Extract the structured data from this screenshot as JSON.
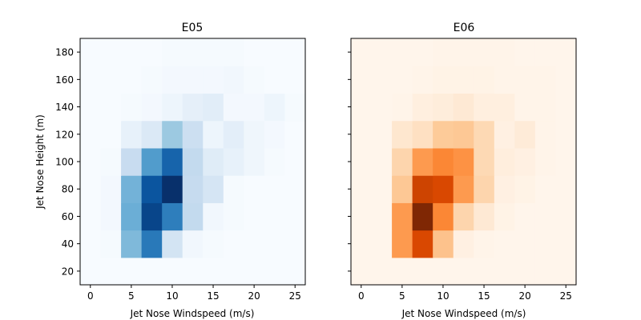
{
  "chart_data": [
    {
      "type": "heatmap",
      "title": "E05",
      "xlabel": "Jet Nose Windspeed (m/s)",
      "ylabel": "Jet Nose Height (m)",
      "xlim": [
        -1.25,
        26.25
      ],
      "ylim": [
        10,
        190
      ],
      "xticks": [
        0,
        5,
        10,
        15,
        20,
        25
      ],
      "yticks": [
        20,
        40,
        60,
        80,
        100,
        120,
        140,
        160,
        180
      ],
      "x_edges": [
        -1.25,
        1.25,
        3.75,
        6.25,
        8.75,
        11.25,
        13.75,
        16.25,
        18.75,
        21.25,
        23.75,
        26.25
      ],
      "y_edges": [
        10,
        30,
        50,
        70,
        90,
        110,
        130,
        150,
        170,
        190
      ],
      "colormap": "Blues",
      "grid": false,
      "values": [
        [
          0.0,
          0.0,
          0.0,
          0.0,
          0.0,
          0.0,
          0.0,
          0.0,
          0.0,
          0.0,
          0.0
        ],
        [
          0.0,
          0.01,
          0.45,
          0.72,
          0.18,
          0.03,
          0.01,
          0.0,
          0.0,
          0.0,
          0.0
        ],
        [
          0.0,
          0.02,
          0.5,
          0.92,
          0.7,
          0.26,
          0.03,
          0.01,
          0.0,
          0.0,
          0.0
        ],
        [
          0.0,
          0.02,
          0.48,
          0.86,
          1.0,
          0.25,
          0.17,
          0.01,
          0.0,
          0.0,
          0.0
        ],
        [
          0.0,
          0.01,
          0.24,
          0.58,
          0.8,
          0.26,
          0.12,
          0.08,
          0.04,
          0.01,
          0.0
        ],
        [
          0.0,
          0.0,
          0.08,
          0.14,
          0.38,
          0.22,
          0.05,
          0.1,
          0.04,
          0.02,
          0.0
        ],
        [
          0.0,
          0.0,
          0.01,
          0.02,
          0.05,
          0.09,
          0.11,
          0.02,
          0.02,
          0.05,
          0.01
        ],
        [
          0.0,
          0.0,
          0.0,
          0.01,
          0.02,
          0.02,
          0.02,
          0.03,
          0.01,
          0.0,
          0.0
        ],
        [
          0.0,
          0.0,
          0.0,
          0.0,
          0.01,
          0.01,
          0.01,
          0.01,
          0.0,
          0.0,
          0.0
        ]
      ]
    },
    {
      "type": "heatmap",
      "title": "E06",
      "xlabel": "Jet Nose Windspeed (m/s)",
      "ylabel": "",
      "xlim": [
        -1.25,
        26.25
      ],
      "ylim": [
        10,
        190
      ],
      "xticks": [
        0,
        5,
        10,
        15,
        20,
        25
      ],
      "yticks": [
        20,
        40,
        60,
        80,
        100,
        120,
        140,
        160,
        180
      ],
      "x_edges": [
        -1.25,
        1.25,
        3.75,
        6.25,
        8.75,
        11.25,
        13.75,
        16.25,
        18.75,
        21.25,
        23.75,
        26.25
      ],
      "y_edges": [
        10,
        30,
        50,
        70,
        90,
        110,
        130,
        150,
        170,
        190
      ],
      "colormap": "Oranges",
      "grid": false,
      "values": [
        [
          0.0,
          0.0,
          0.0,
          0.0,
          0.0,
          0.0,
          0.0,
          0.0,
          0.0,
          0.0,
          0.0
        ],
        [
          0.0,
          0.0,
          0.45,
          0.75,
          0.3,
          0.04,
          0.01,
          0.0,
          0.0,
          0.0,
          0.0
        ],
        [
          0.0,
          0.0,
          0.45,
          1.0,
          0.52,
          0.22,
          0.1,
          0.02,
          0.0,
          0.0,
          0.0
        ],
        [
          0.0,
          0.0,
          0.28,
          0.78,
          0.75,
          0.45,
          0.22,
          0.04,
          0.02,
          0.0,
          0.0
        ],
        [
          0.0,
          0.0,
          0.22,
          0.45,
          0.52,
          0.48,
          0.2,
          0.06,
          0.04,
          0.01,
          0.0
        ],
        [
          0.0,
          0.0,
          0.12,
          0.16,
          0.27,
          0.28,
          0.2,
          0.04,
          0.08,
          0.01,
          0.0
        ],
        [
          0.0,
          0.0,
          0.01,
          0.05,
          0.07,
          0.1,
          0.05,
          0.05,
          0.01,
          0.01,
          0.0
        ],
        [
          0.0,
          0.0,
          0.0,
          0.01,
          0.02,
          0.02,
          0.02,
          0.01,
          0.01,
          0.01,
          0.0
        ],
        [
          0.0,
          0.0,
          0.0,
          0.0,
          0.01,
          0.01,
          0.01,
          0.01,
          0.0,
          0.0,
          0.0
        ]
      ]
    }
  ]
}
